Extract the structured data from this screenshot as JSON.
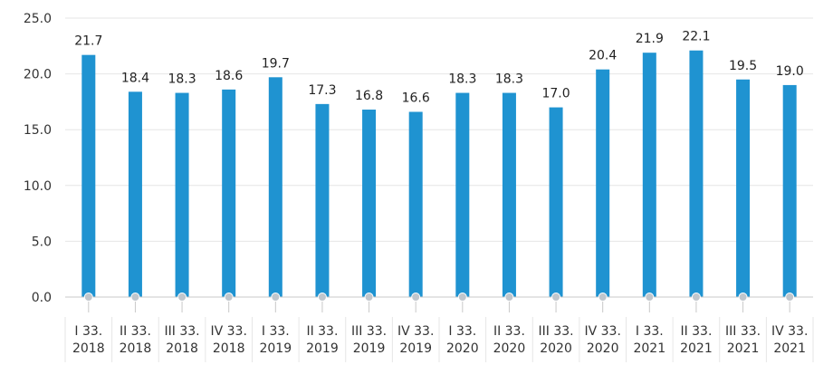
{
  "chart_data": {
    "type": "bar",
    "categories": [
      [
        "I 33.",
        "2018"
      ],
      [
        "II 33.",
        "2018"
      ],
      [
        "III 33.",
        "2018"
      ],
      [
        "IV 33.",
        "2018"
      ],
      [
        "I 33.",
        "2019"
      ],
      [
        "II 33.",
        "2019"
      ],
      [
        "III 33.",
        "2019"
      ],
      [
        "IV 33.",
        "2019"
      ],
      [
        "I 33.",
        "2020"
      ],
      [
        "II 33.",
        "2020"
      ],
      [
        "III 33.",
        "2020"
      ],
      [
        "IV 33.",
        "2020"
      ],
      [
        "I 33.",
        "2021"
      ],
      [
        "II 33.",
        "2021"
      ],
      [
        "III 33.",
        "2021"
      ],
      [
        "IV 33.",
        "2021"
      ]
    ],
    "values": [
      21.7,
      18.4,
      18.3,
      18.6,
      19.7,
      17.3,
      16.8,
      16.6,
      18.3,
      18.3,
      17.0,
      20.4,
      21.9,
      22.1,
      19.5,
      19.0
    ],
    "data_labels": [
      "21.7",
      "18.4",
      "18.3",
      "18.6",
      "19.7",
      "17.3",
      "16.8",
      "16.6",
      "18.3",
      "18.3",
      "17.0",
      "20.4",
      "21.9",
      "22.1",
      "19.5",
      "19.0"
    ],
    "yticks": [
      "0.0",
      "5.0",
      "10.0",
      "15.0",
      "20.0",
      "25.0"
    ],
    "ylim": [
      0,
      25
    ],
    "title": "",
    "xlabel": "",
    "ylabel": "",
    "grid": true,
    "legend": "none",
    "colors": {
      "bar": "#1f93d1",
      "grid": "#e6e6e6",
      "axis": "#c8c8c8",
      "marker": "#c0c6cc"
    }
  }
}
